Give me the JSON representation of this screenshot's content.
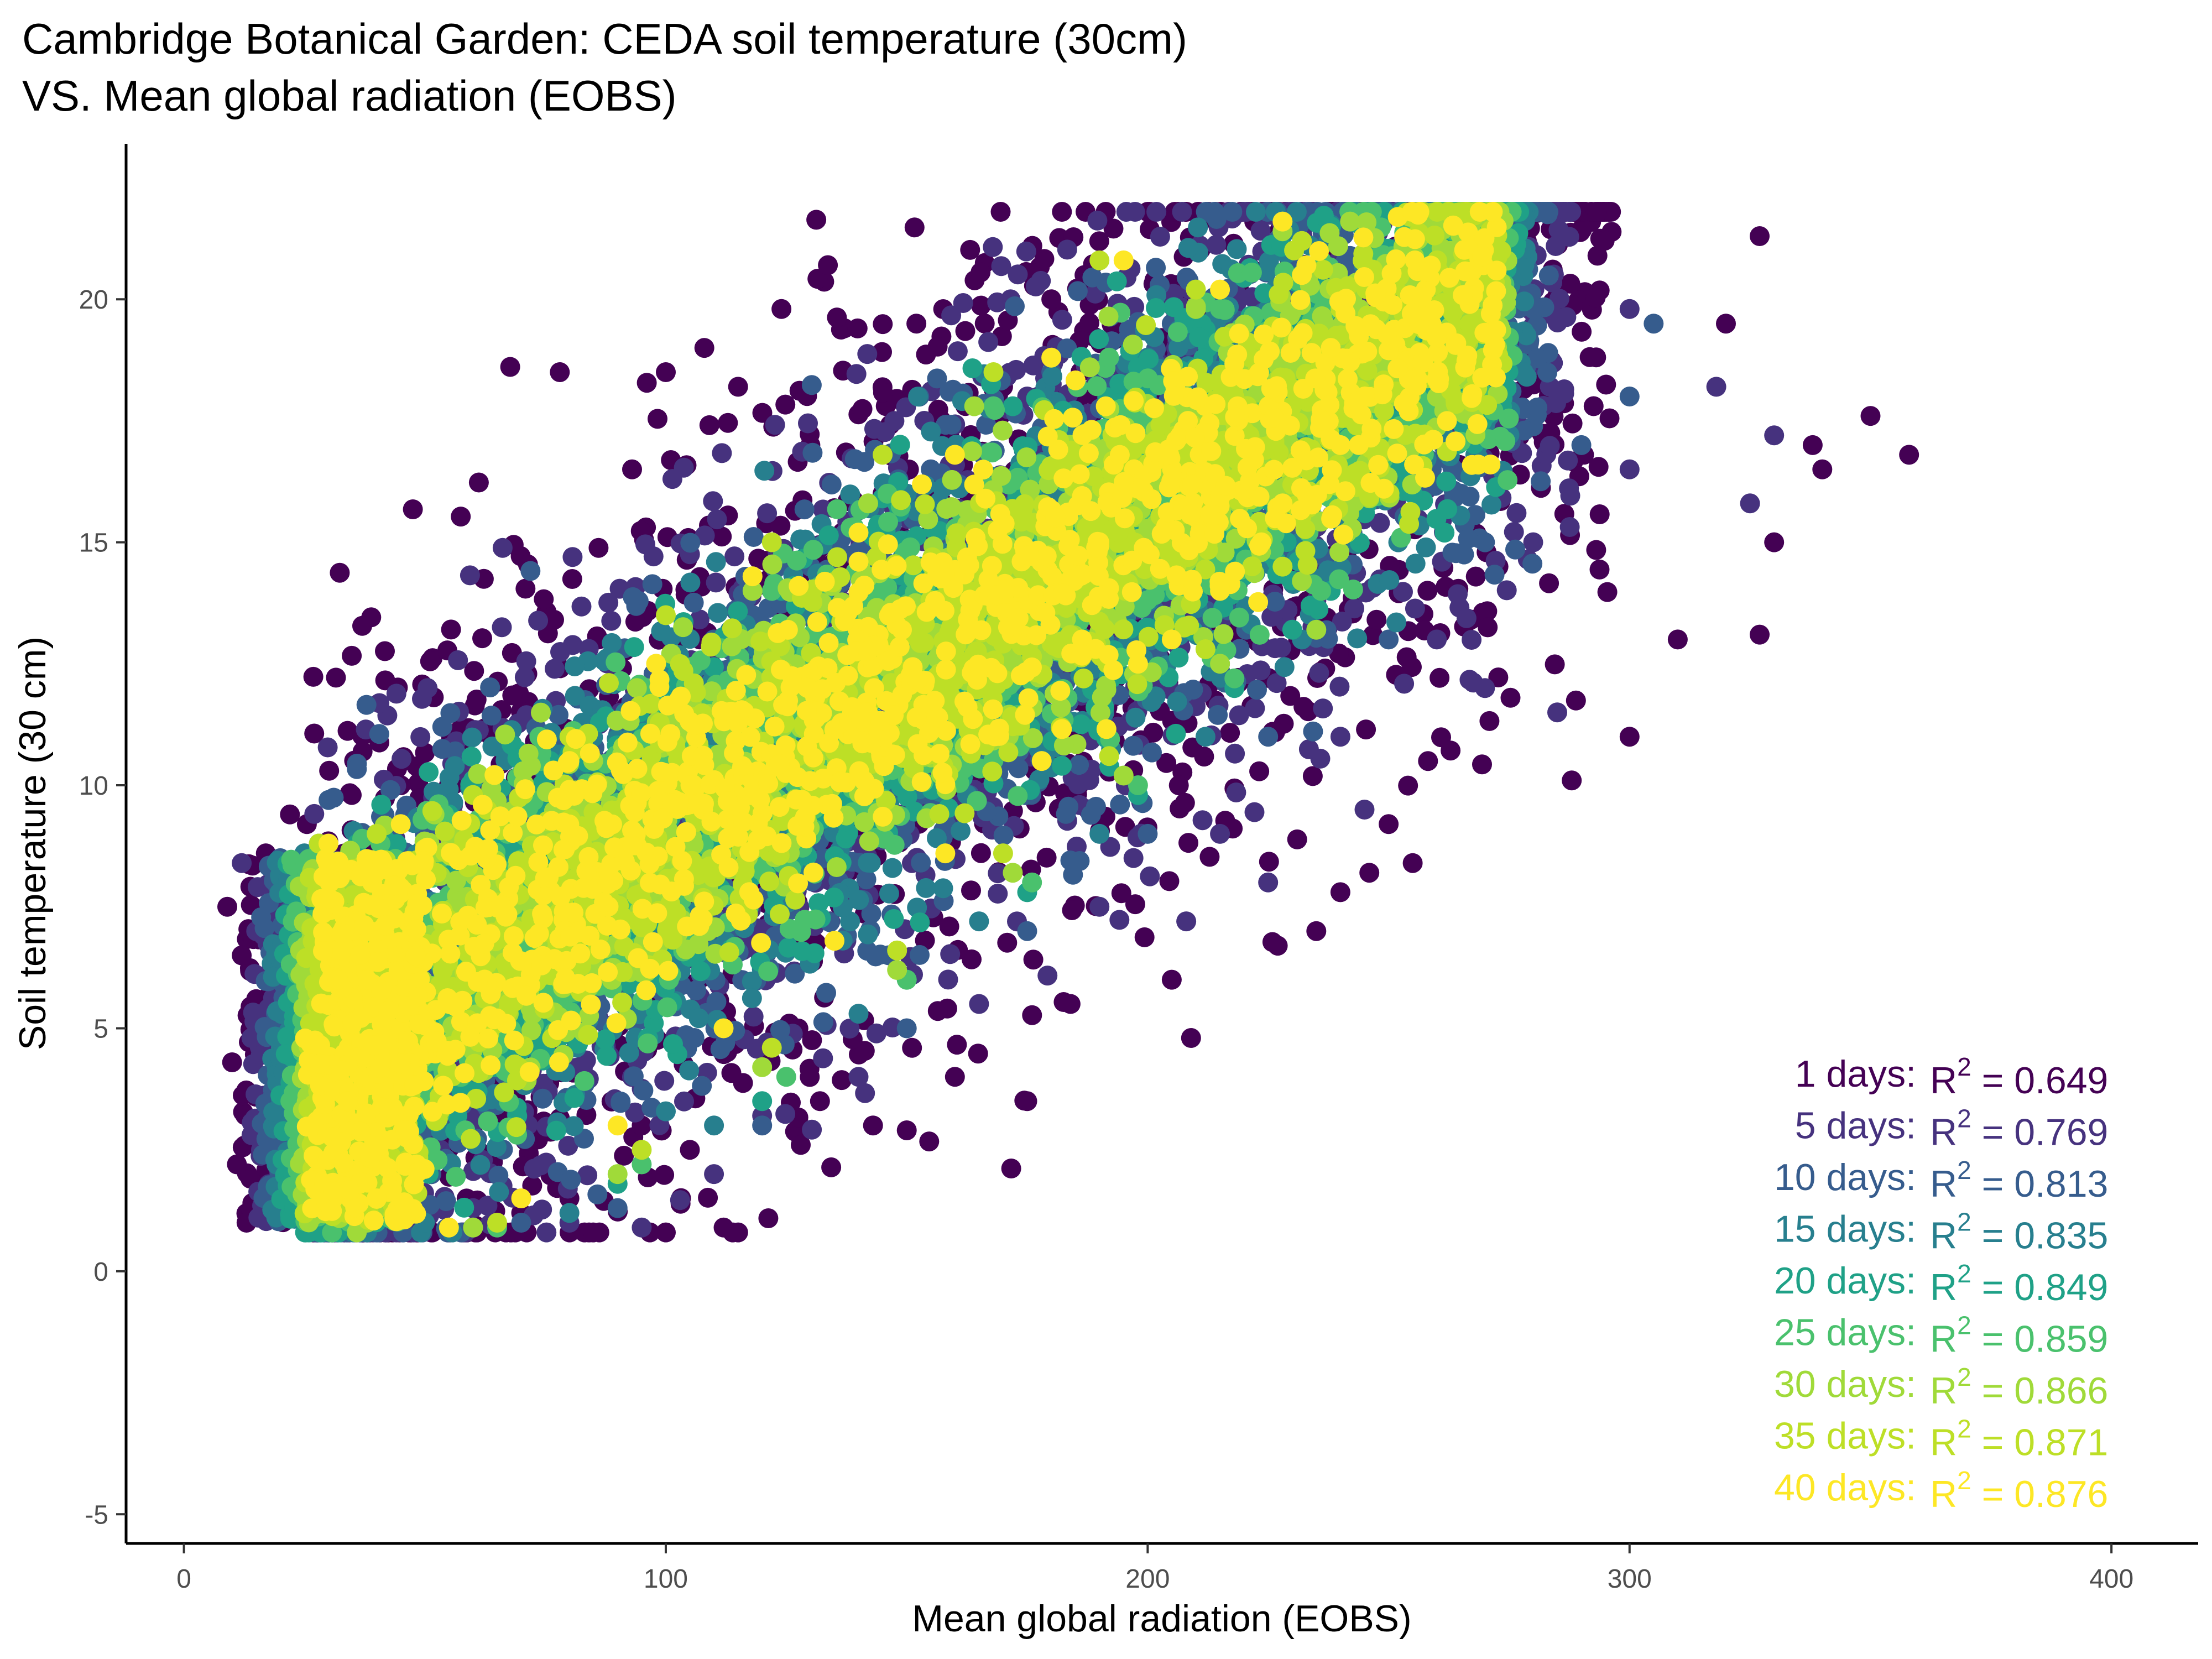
{
  "chart_data": {
    "type": "scatter",
    "title": "Cambridge Botanical Garden: CEDA soil temperature (30cm)",
    "subtitle": "VS. Mean global radiation (EOBS)",
    "xlabel": "Mean global radiation (EOBS)",
    "ylabel": "Soil temperature (30 cm)",
    "xlim": [
      -12,
      418
    ],
    "ylim": [
      -5.6,
      23.2
    ],
    "x_ticks": [
      0,
      100,
      200,
      300,
      400
    ],
    "y_ticks": [
      -5,
      0,
      5,
      10,
      15,
      20
    ],
    "grid": false,
    "legend": "none",
    "annotation_placement": "bottom-right",
    "series": [
      {
        "label": "1 days:",
        "r2_value": "= 0.649",
        "color": "#440154",
        "spread_x": 56,
        "spread_y": 4.2,
        "points": [
          [
            9,
            7.5
          ],
          [
            12,
            6.5
          ],
          [
            10,
            4.3
          ],
          [
            11,
            2.2
          ],
          [
            14,
            1.2
          ],
          [
            15,
            5.6
          ],
          [
            17,
            8.6
          ],
          [
            22,
            9.4
          ],
          [
            16,
            3.1
          ],
          [
            13,
            1.0
          ],
          [
            45,
            10.0
          ],
          [
            55,
            10.0
          ],
          [
            68,
            9.5
          ],
          [
            78,
            18.5
          ],
          [
            100,
            18.5
          ],
          [
            108,
            19.0
          ],
          [
            115,
            18.2
          ],
          [
            124,
            19.8
          ],
          [
            130,
            17.0
          ],
          [
            145,
            16.0
          ],
          [
            120,
            4.6
          ],
          [
            128,
            2.6
          ],
          [
            132,
            3.5
          ],
          [
            143,
            3.0
          ],
          [
            150,
            2.9
          ],
          [
            160,
            4.0
          ],
          [
            175,
            3.5
          ],
          [
            184,
            5.5
          ],
          [
            205,
            6.0
          ],
          [
            209,
            4.8
          ],
          [
            227,
            6.7
          ],
          [
            235,
            7.0
          ],
          [
            240,
            7.8
          ],
          [
            246,
            8.2
          ],
          [
            250,
            9.2
          ],
          [
            255,
            8.4
          ],
          [
            288,
            10.1
          ],
          [
            300,
            11.0
          ],
          [
            310,
            13.0
          ],
          [
            327,
            13.1
          ],
          [
            330,
            15.0
          ],
          [
            340,
            16.5
          ],
          [
            350,
            17.6
          ],
          [
            358,
            16.8
          ],
          [
            338,
            17.0
          ],
          [
            327,
            21.3
          ],
          [
            320,
            19.5
          ],
          [
            200,
            21.8
          ],
          [
            180,
            20.0
          ],
          [
            95,
            3.0
          ],
          [
            105,
            2.5
          ],
          [
            112,
            0.9
          ],
          [
            100,
            0.8
          ],
          [
            70,
            1.2
          ],
          [
            80,
            1.5
          ],
          [
            86,
            13.0
          ],
          [
            93,
            16.5
          ],
          [
            152,
            19.5
          ],
          [
            170,
            18.2
          ],
          [
            268,
            21.7
          ]
        ]
      },
      {
        "label": "5 days:",
        "r2_value": "= 0.769",
        "color": "#46327e",
        "spread_x": 42,
        "spread_y": 3.2,
        "points": [
          [
            12,
            8.4
          ],
          [
            15,
            7.0
          ],
          [
            14,
            4.8
          ],
          [
            16,
            2.5
          ],
          [
            18,
            1.2
          ],
          [
            20,
            6.0
          ],
          [
            60,
            1.3
          ],
          [
            80,
            1.0
          ],
          [
            95,
            0.9
          ],
          [
            110,
            2.0
          ],
          [
            140,
            4.0
          ],
          [
            165,
            5.5
          ],
          [
            190,
            7.5
          ],
          [
            215,
            9.0
          ],
          [
            240,
            11.0
          ],
          [
            260,
            13.0
          ],
          [
            280,
            15.0
          ],
          [
            300,
            16.5
          ],
          [
            318,
            18.2
          ],
          [
            330,
            17.2
          ],
          [
            325,
            15.8
          ],
          [
            300,
            19.8
          ],
          [
            275,
            21.7
          ],
          [
            255,
            21.6
          ],
          [
            237,
            20.4
          ],
          [
            200,
            18.8
          ],
          [
            175,
            18.0
          ],
          [
            150,
            16.0
          ],
          [
            128,
            14.0
          ],
          [
            105,
            12.0
          ],
          [
            85,
            10.0
          ],
          [
            65,
            9.0
          ],
          [
            40,
            8.3
          ],
          [
            45,
            5.0
          ],
          [
            270,
            12.0
          ],
          [
            285,
            11.5
          ],
          [
            245,
            9.5
          ],
          [
            225,
            8.0
          ],
          [
            208,
            7.2
          ],
          [
            120,
            3.2
          ]
        ]
      },
      {
        "label": "10 days:",
        "r2_value": "= 0.813",
        "color": "#365c8d",
        "spread_x": 34,
        "spread_y": 2.6,
        "points": [
          [
            20,
            8.5
          ],
          [
            22,
            6.0
          ],
          [
            22,
            3.5
          ],
          [
            24,
            1.5
          ],
          [
            40,
            1.1
          ],
          [
            70,
            1.0
          ],
          [
            90,
            1.3
          ],
          [
            120,
            3.0
          ],
          [
            150,
            5.0
          ],
          [
            175,
            7.0
          ],
          [
            200,
            9.0
          ],
          [
            225,
            11.0
          ],
          [
            250,
            13.0
          ],
          [
            270,
            15.0
          ],
          [
            290,
            17.0
          ],
          [
            300,
            18.0
          ],
          [
            305,
            19.5
          ],
          [
            280,
            19.8
          ],
          [
            262,
            21.0
          ],
          [
            230,
            20.8
          ],
          [
            205,
            19.5
          ],
          [
            180,
            18.5
          ],
          [
            155,
            16.5
          ],
          [
            130,
            14.5
          ],
          [
            110,
            13.0
          ],
          [
            90,
            11.0
          ],
          [
            70,
            10.0
          ],
          [
            50,
            9.0
          ],
          [
            265,
            16.0
          ],
          [
            240,
            14.5
          ]
        ]
      },
      {
        "label": "15 days:",
        "r2_value": "= 0.835",
        "color": "#277f8e",
        "spread_x": 28,
        "spread_y": 2.2,
        "points": [
          [
            25,
            8.6
          ],
          [
            26,
            5.5
          ],
          [
            27,
            2.5
          ],
          [
            30,
            1.2
          ],
          [
            50,
            1.0
          ],
          [
            80,
            1.2
          ],
          [
            110,
            3.0
          ],
          [
            140,
            5.3
          ],
          [
            165,
            7.2
          ],
          [
            190,
            9.0
          ],
          [
            212,
            11.0
          ],
          [
            232,
            13.0
          ],
          [
            252,
            15.0
          ],
          [
            268,
            16.8
          ],
          [
            278,
            18.5
          ],
          [
            265,
            20.0
          ],
          [
            248,
            20.3
          ],
          [
            225,
            19.8
          ],
          [
            200,
            18.8
          ],
          [
            178,
            18.0
          ],
          [
            150,
            16.0
          ],
          [
            128,
            14.0
          ],
          [
            100,
            12.0
          ],
          [
            80,
            10.5
          ],
          [
            58,
            9.2
          ],
          [
            36,
            8.5
          ],
          [
            215,
            12.5
          ],
          [
            240,
            16.5
          ]
        ]
      },
      {
        "label": "20 days:",
        "r2_value": "= 0.849",
        "color": "#1fa187",
        "spread_x": 24,
        "spread_y": 1.9,
        "points": [
          [
            28,
            8.8
          ],
          [
            29,
            5.5
          ],
          [
            30,
            2.5
          ],
          [
            34,
            1.0
          ],
          [
            60,
            0.9
          ],
          [
            90,
            1.8
          ],
          [
            120,
            3.5
          ],
          [
            150,
            6.0
          ],
          [
            175,
            7.8
          ],
          [
            198,
            9.8
          ],
          [
            218,
            12.0
          ],
          [
            238,
            14.0
          ],
          [
            255,
            16.0
          ],
          [
            262,
            17.5
          ],
          [
            258,
            19.5
          ],
          [
            242,
            20.2
          ],
          [
            222,
            19.6
          ],
          [
            198,
            18.6
          ],
          [
            172,
            17.8
          ],
          [
            148,
            15.8
          ],
          [
            124,
            14.0
          ],
          [
            98,
            12.0
          ],
          [
            76,
            10.5
          ],
          [
            55,
            9.4
          ],
          [
            36,
            8.8
          ],
          [
            230,
            13.2
          ]
        ]
      },
      {
        "label": "25 days:",
        "r2_value": "= 0.859",
        "color": "#4ac16d",
        "spread_x": 22,
        "spread_y": 1.7,
        "points": [
          [
            28,
            8.7
          ],
          [
            30,
            5.0
          ],
          [
            31,
            2.2
          ],
          [
            36,
            1.0
          ],
          [
            65,
            0.9
          ],
          [
            95,
            2.2
          ],
          [
            125,
            4.0
          ],
          [
            150,
            6.0
          ],
          [
            176,
            8.0
          ],
          [
            198,
            10.0
          ],
          [
            218,
            12.2
          ],
          [
            236,
            14.0
          ],
          [
            250,
            16.0
          ],
          [
            254,
            18.0
          ],
          [
            250,
            19.8
          ],
          [
            236,
            20.8
          ],
          [
            215,
            19.8
          ],
          [
            192,
            18.8
          ],
          [
            168,
            17.8
          ],
          [
            146,
            16.0
          ],
          [
            122,
            14.0
          ],
          [
            96,
            12.0
          ],
          [
            74,
            10.5
          ],
          [
            54,
            9.4
          ],
          [
            37,
            8.9
          ]
        ]
      },
      {
        "label": "30 days:",
        "r2_value": "= 0.866",
        "color": "#a0da39",
        "spread_x": 20,
        "spread_y": 1.6,
        "points": [
          [
            28,
            8.8
          ],
          [
            30,
            5.5
          ],
          [
            32,
            2.5
          ],
          [
            38,
            1.0
          ],
          [
            60,
            0.9
          ],
          [
            90,
            2.0
          ],
          [
            120,
            4.2
          ],
          [
            148,
            6.2
          ],
          [
            172,
            8.2
          ],
          [
            195,
            10.2
          ],
          [
            215,
            12.5
          ],
          [
            232,
            14.2
          ],
          [
            245,
            16.0
          ],
          [
            248,
            18.0
          ],
          [
            244,
            19.8
          ],
          [
            242,
            21.6
          ],
          [
            228,
            21.4
          ],
          [
            210,
            19.8
          ],
          [
            188,
            18.6
          ],
          [
            164,
            17.8
          ],
          [
            142,
            15.8
          ],
          [
            118,
            14.0
          ],
          [
            94,
            12.0
          ],
          [
            72,
            10.4
          ],
          [
            52,
            9.4
          ],
          [
            235,
            13.2
          ]
        ]
      },
      {
        "label": "35 days:",
        "r2_value": "= 0.871",
        "color": "#bddf26",
        "spread_x": 18,
        "spread_y": 1.5,
        "points": [
          [
            28,
            8.8
          ],
          [
            30,
            6.0
          ],
          [
            32,
            3.0
          ],
          [
            38,
            1.2
          ],
          [
            65,
            1.0
          ],
          [
            95,
            2.5
          ],
          [
            122,
            4.6
          ],
          [
            148,
            6.6
          ],
          [
            170,
            8.6
          ],
          [
            192,
            10.6
          ],
          [
            212,
            12.8
          ],
          [
            228,
            14.5
          ],
          [
            240,
            16.2
          ],
          [
            243,
            18.0
          ],
          [
            240,
            19.8
          ],
          [
            232,
            21.2
          ],
          [
            210,
            20.2
          ],
          [
            190,
            20.8
          ],
          [
            168,
            18.5
          ],
          [
            145,
            16.8
          ],
          [
            122,
            15.0
          ],
          [
            100,
            13.5
          ],
          [
            80,
            11.0
          ],
          [
            60,
            9.8
          ],
          [
            40,
            9.0
          ]
        ]
      },
      {
        "label": "40 days:",
        "r2_value": "= 0.876",
        "color": "#fde725",
        "spread_x": 16,
        "spread_y": 1.4,
        "points": [
          [
            30,
            8.8
          ],
          [
            32,
            6.0
          ],
          [
            34,
            3.5
          ],
          [
            40,
            1.5
          ],
          [
            55,
            0.9
          ],
          [
            70,
            1.5
          ],
          [
            90,
            3.0
          ],
          [
            112,
            5.0
          ],
          [
            135,
            6.8
          ],
          [
            158,
            8.6
          ],
          [
            178,
            10.5
          ],
          [
            198,
            12.5
          ],
          [
            215,
            14.0
          ],
          [
            228,
            15.8
          ],
          [
            236,
            17.5
          ],
          [
            238,
            19.0
          ],
          [
            232,
            20.5
          ],
          [
            228,
            21.6
          ],
          [
            215,
            20.2
          ],
          [
            195,
            20.8
          ],
          [
            180,
            18.8
          ],
          [
            160,
            16.8
          ],
          [
            140,
            15.2
          ],
          [
            118,
            14.3
          ],
          [
            98,
            12.5
          ],
          [
            80,
            10.5
          ],
          [
            62,
            9.6
          ],
          [
            45,
            9.2
          ],
          [
            240,
            17.0
          ],
          [
            205,
            13.0
          ]
        ]
      }
    ]
  }
}
